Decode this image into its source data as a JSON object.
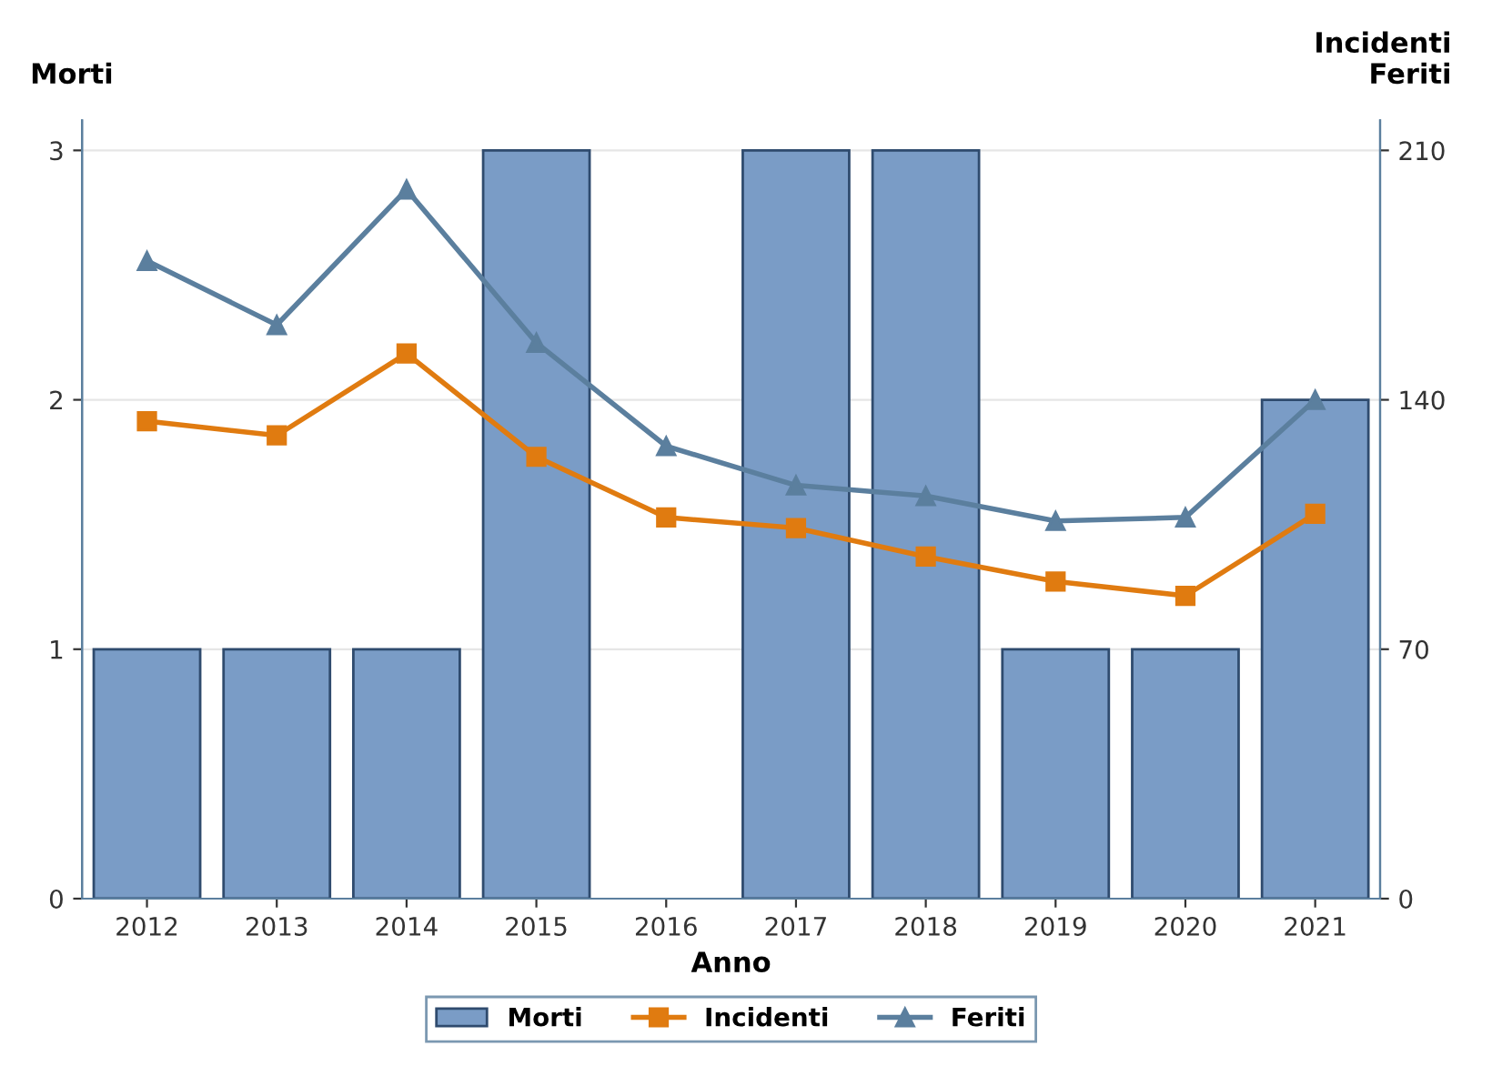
{
  "chart_data": {
    "type": "bar",
    "xlabel": "Anno",
    "ylabel": "Morti",
    "y2label": "Incidenti\nFeriti",
    "categories": [
      "2012",
      "2013",
      "2014",
      "2015",
      "2016",
      "2017",
      "2018",
      "2019",
      "2020",
      "2021"
    ],
    "series": [
      {
        "name": "Morti",
        "color": "#7a9cc6",
        "values": [
          1,
          1,
          1,
          3,
          0,
          3,
          3,
          1,
          1,
          2
        ]
      },
      {
        "name": "Incidenti",
        "type": "line",
        "axis": "y2",
        "color": "#e07b10",
        "marker": "square",
        "values": [
          134,
          130,
          153,
          124,
          107,
          104,
          96,
          89,
          85,
          108
        ]
      },
      {
        "name": "Feriti",
        "type": "line",
        "axis": "y2",
        "color": "#5b7f9e",
        "marker": "triangle",
        "values": [
          179,
          161,
          199,
          156,
          127,
          116,
          113,
          106,
          107,
          140
        ]
      }
    ],
    "ylim": [
      0,
      3.12
    ],
    "yticks": [
      0,
      1,
      2,
      3
    ],
    "y2lim": [
      0,
      218.4
    ],
    "y2ticks": [
      0,
      70,
      140,
      210
    ],
    "grid": "y",
    "legend": "bottom",
    "line_style": "solid"
  }
}
